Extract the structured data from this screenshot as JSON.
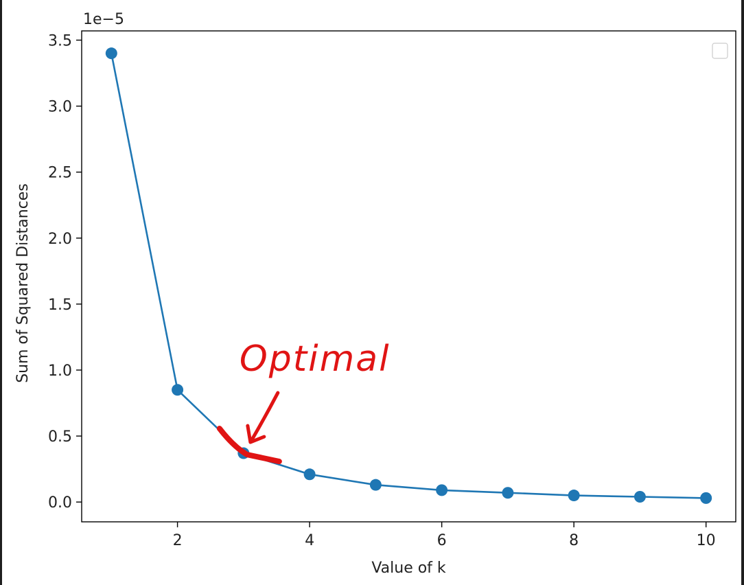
{
  "chart_data": {
    "type": "line",
    "x": [
      1,
      2,
      3,
      4,
      5,
      6,
      7,
      8,
      9,
      10
    ],
    "series": [
      {
        "values": [
          3.4,
          0.85,
          0.37,
          0.21,
          0.13,
          0.09,
          0.07,
          0.05,
          0.04,
          0.03
        ]
      }
    ],
    "scale_label": "1e−5",
    "xlabel": "Value of k",
    "ylabel": "Sum of Squared Distances",
    "xlim": [
      0.55,
      10.45
    ],
    "ylim": [
      -0.15,
      3.57
    ],
    "xticks": [
      2,
      4,
      6,
      8,
      10
    ],
    "xtick_labels": [
      "2",
      "4",
      "6",
      "8",
      "10"
    ],
    "yticks": [
      0.0,
      0.5,
      1.0,
      1.5,
      2.0,
      2.5,
      3.0,
      3.5
    ],
    "ytick_labels": [
      "0.0",
      "0.5",
      "1.0",
      "1.5",
      "2.0",
      "2.5",
      "3.0",
      "3.5"
    ],
    "grid": false,
    "legend": "top-right, empty",
    "line_color": "#1f77b4",
    "annotation": {
      "text": "Optimal",
      "target_x": 3,
      "color": "#e01414"
    }
  }
}
